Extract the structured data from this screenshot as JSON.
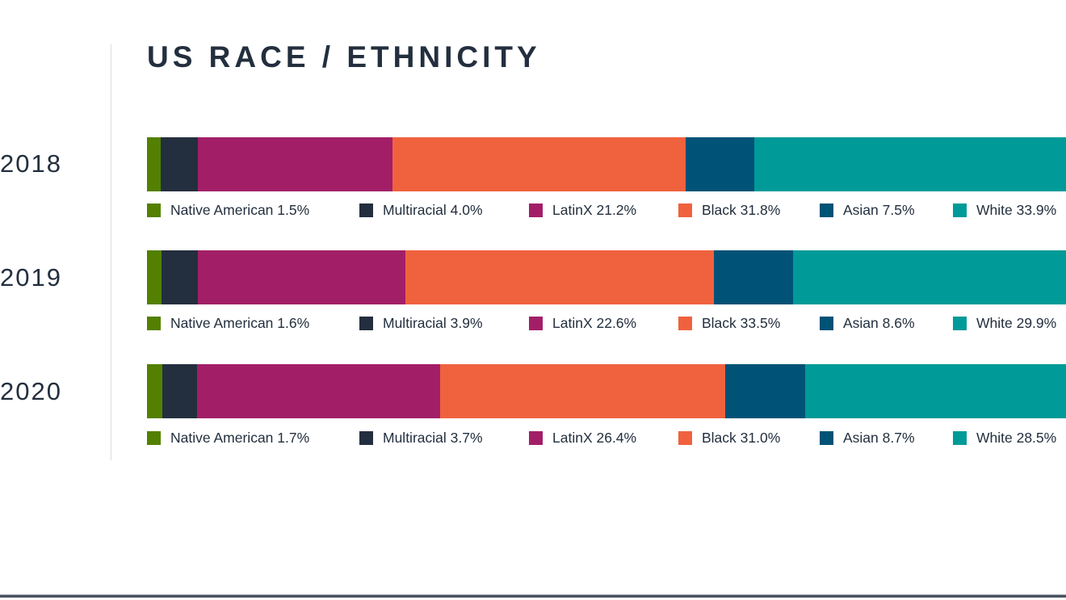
{
  "chart_data": {
    "type": "bar",
    "stacked": true,
    "orientation": "horizontal",
    "title": "US RACE / ETHNICITY",
    "categories": [
      "2018",
      "2019",
      "2020"
    ],
    "series": [
      {
        "name": "Native American",
        "color": "#538000",
        "values": [
          1.5,
          1.6,
          1.7
        ]
      },
      {
        "name": "Multiracial",
        "color": "#232f3e",
        "values": [
          4.0,
          3.9,
          3.7
        ]
      },
      {
        "name": "LatinX",
        "color": "#a21f68",
        "values": [
          21.2,
          22.6,
          26.4
        ]
      },
      {
        "name": "Black",
        "color": "#f0623e",
        "values": [
          31.8,
          33.5,
          31.0
        ]
      },
      {
        "name": "Asian",
        "color": "#005276",
        "values": [
          7.5,
          8.6,
          8.7
        ]
      },
      {
        "name": "White",
        "color": "#009a98",
        "values": [
          33.9,
          29.9,
          28.5
        ]
      }
    ],
    "unit": "%",
    "legend_placement": "below each bar"
  }
}
